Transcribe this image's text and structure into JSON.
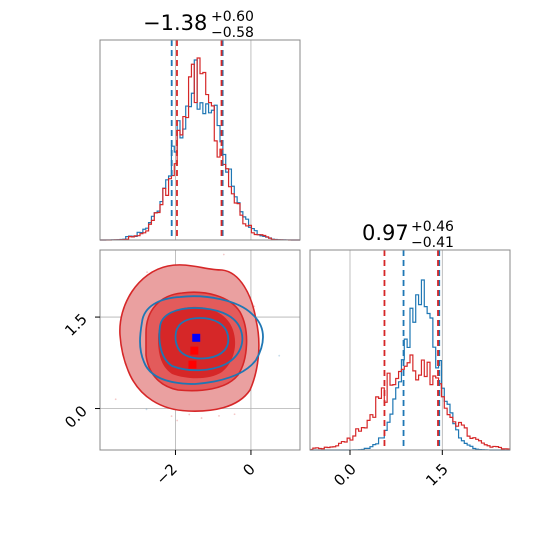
{
  "colors": {
    "blue": "#1f77b4",
    "red": "#d62728",
    "red_light": "#eaa0a0",
    "red_mid": "#e35b5b",
    "grid": "#b0b0b0",
    "marker_blue": "#0000ff",
    "marker_red": "#ff0000"
  },
  "chart_data": {
    "type": "corner",
    "series": [
      {
        "name": "",
        "color": "#1f77b4"
      },
      {
        "name": "",
        "color": "#d62728"
      }
    ],
    "panels": [
      {
        "type": "histogram",
        "parameter_index": 0,
        "title": {
          "main": "−1.38",
          "sup": "+0.60",
          "sub": "−0.58"
        },
        "xlim": [
          -4.0,
          1.3
        ],
        "x_grid_ticks": [
          -2,
          0
        ],
        "series": [
          {
            "color": "#1f77b4",
            "center": -1.38,
            "sigma": 0.6,
            "quantiles": [
              -2.1,
              -0.75
            ]
          },
          {
            "color": "#d62728",
            "center": -1.38,
            "sigma": 0.58,
            "quantiles": [
              -1.96,
              -0.78
            ]
          }
        ]
      },
      {
        "type": "histogram",
        "parameter_index": 1,
        "title": {
          "main": "0.97",
          "sup": "+0.46",
          "sub": "−0.41"
        },
        "xlim": [
          -0.65,
          2.6
        ],
        "x_grid_ticks": [
          0.0,
          1.5
        ],
        "x_tick_labels": [
          "0.0",
          "1.5"
        ],
        "series": [
          {
            "color": "#1f77b4",
            "center": 1.15,
            "sigma": 0.28,
            "quantiles": [
              0.87,
              1.45
            ]
          },
          {
            "color": "#d62728",
            "center": 1.0,
            "sigma": 0.5,
            "quantiles": [
              0.56,
              1.43
            ]
          }
        ]
      },
      {
        "type": "2d",
        "xlim": [
          -4.0,
          1.3
        ],
        "ylim": [
          -0.68,
          2.6
        ],
        "x_tick_values": [
          -2,
          0
        ],
        "x_tick_labels": [
          "−2",
          "0"
        ],
        "y_tick_values": [
          0.0,
          1.5
        ],
        "y_tick_labels": [
          "0.0",
          "1.5"
        ],
        "markers": [
          {
            "color": "#0000ff",
            "x": -1.45,
            "y": 1.16
          },
          {
            "color": "#ff0000",
            "x": -1.5,
            "y": 0.95
          },
          {
            "color": "#ff0000",
            "x": -1.55,
            "y": 0.72
          }
        ]
      }
    ]
  }
}
